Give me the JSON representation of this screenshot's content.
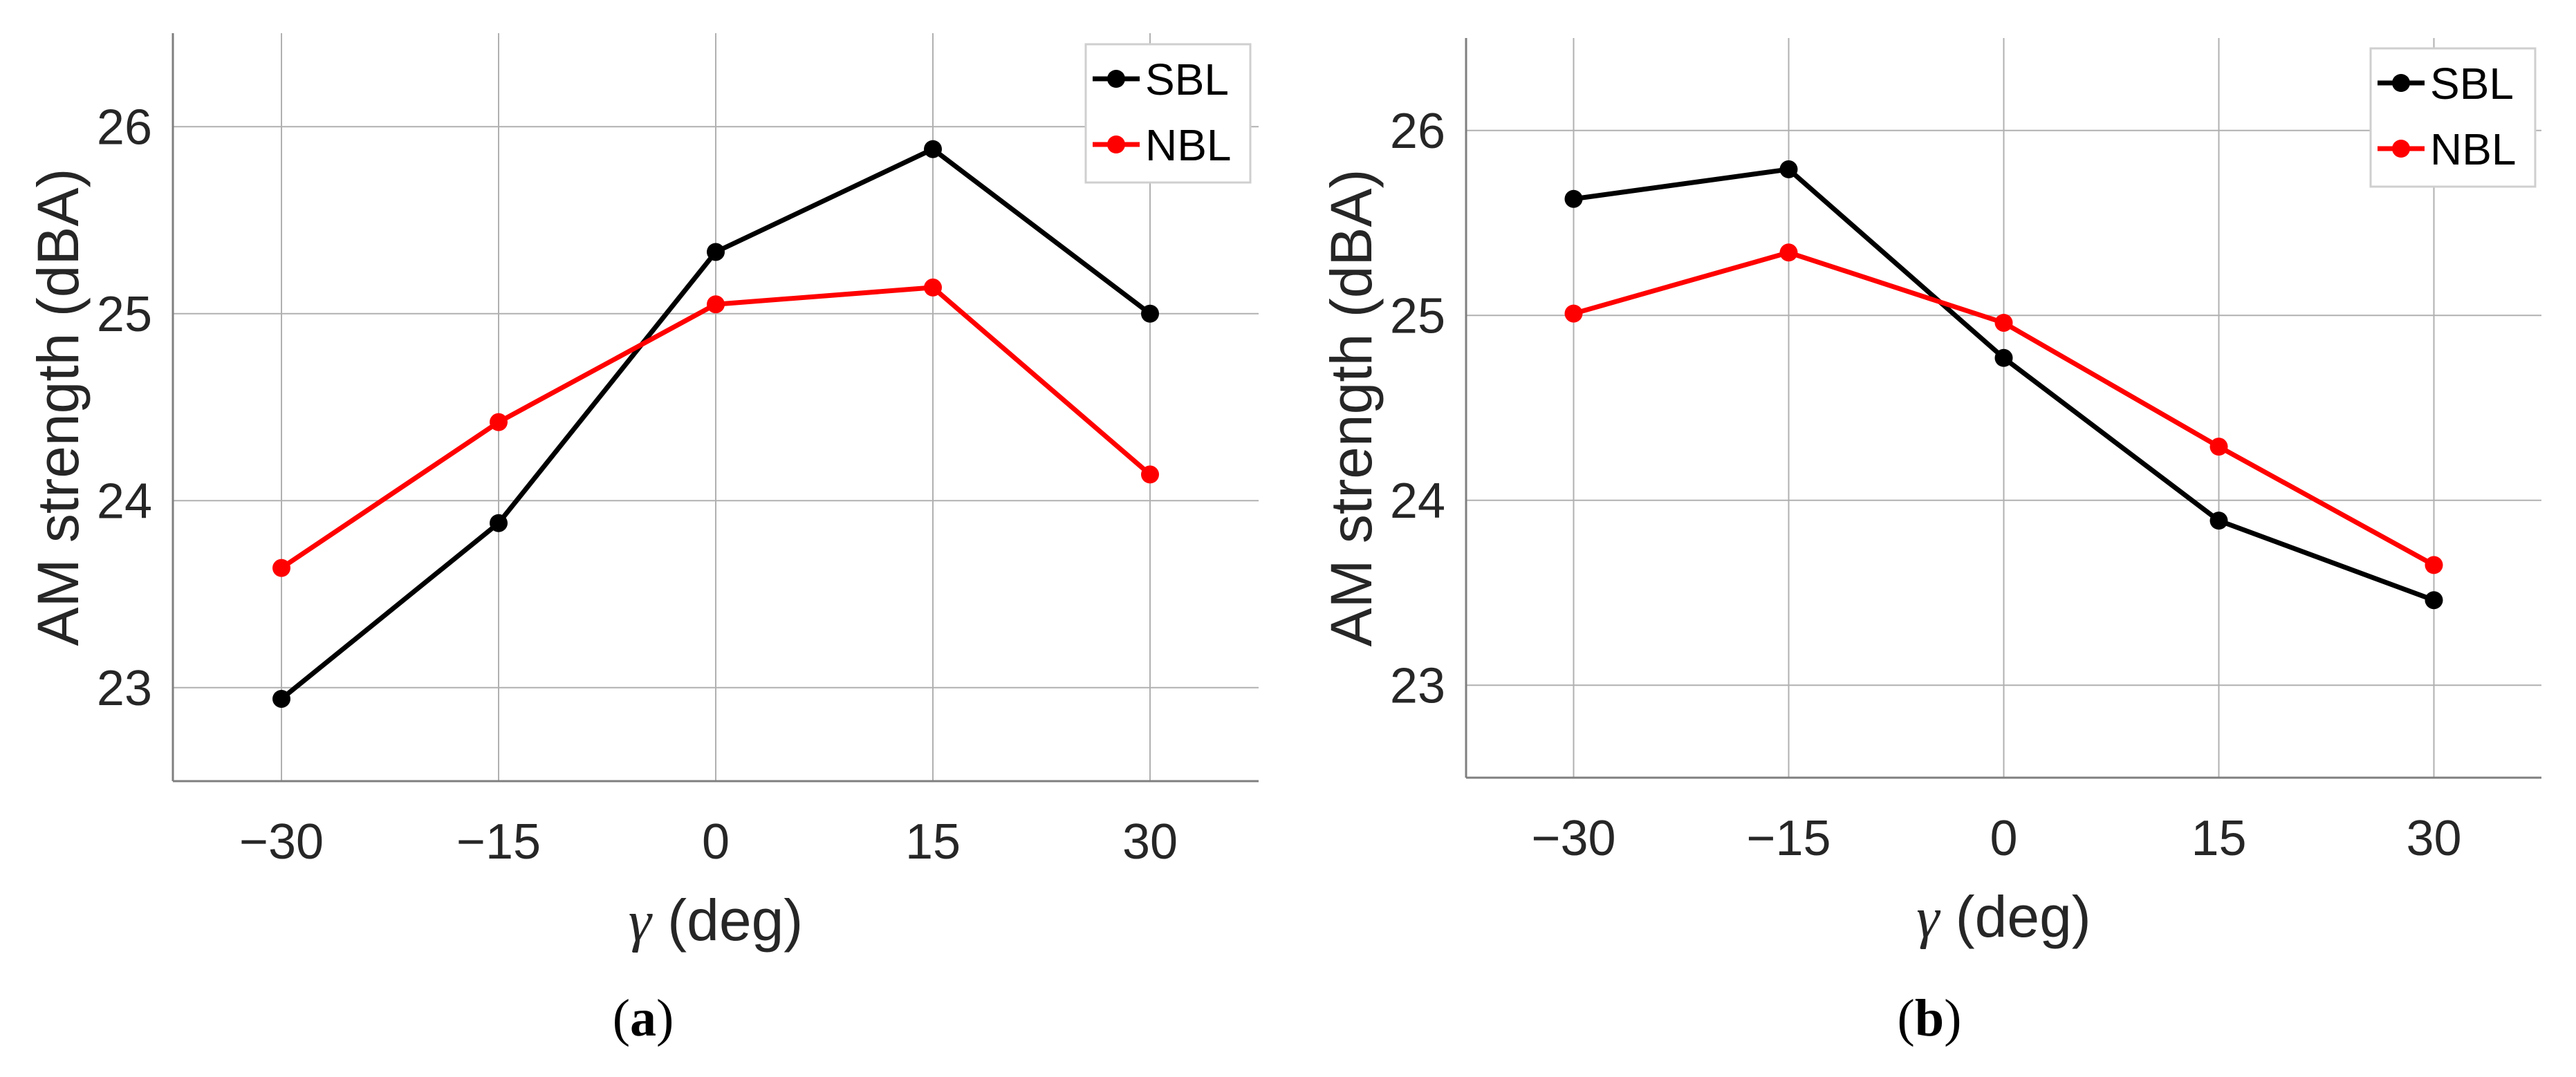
{
  "colors": {
    "SBL": "#000000",
    "NBL": "#ff0000",
    "grid": "#b0b0b0",
    "axis": "#7f7f7f"
  },
  "captions": {
    "a": "a",
    "b": "b"
  },
  "chart_data": [
    {
      "type": "line",
      "panel": "a",
      "x": [
        -30,
        -15,
        0,
        15,
        30
      ],
      "xticks": [
        "−30",
        "−15",
        "0",
        "15",
        "30"
      ],
      "yticks": [
        "23",
        "24",
        "25",
        "26"
      ],
      "xlim": [
        -37.5,
        37.5
      ],
      "ylim": [
        22.5,
        26.5
      ],
      "xlabel_symbol": "γ",
      "xlabel": " (deg)",
      "ylabel": "AM strength (dBA)",
      "legend_position": "top-right",
      "series": [
        {
          "name": "SBL",
          "values": [
            22.94,
            23.88,
            25.33,
            25.88,
            25.0
          ]
        },
        {
          "name": "NBL",
          "values": [
            23.64,
            24.42,
            25.05,
            25.14,
            24.14
          ]
        }
      ]
    },
    {
      "type": "line",
      "panel": "b",
      "x": [
        -30,
        -15,
        0,
        15,
        30
      ],
      "xticks": [
        "−30",
        "−15",
        "0",
        "15",
        "30"
      ],
      "yticks": [
        "23",
        "24",
        "25",
        "26"
      ],
      "xlim": [
        -37.5,
        37.5
      ],
      "ylim": [
        22.5,
        26.5
      ],
      "xlabel_symbol": "γ",
      "xlabel": " (deg)",
      "ylabel": "AM strength (dBA)",
      "legend_position": "top-right",
      "series": [
        {
          "name": "SBL",
          "values": [
            25.63,
            25.79,
            24.77,
            23.89,
            23.46
          ]
        },
        {
          "name": "NBL",
          "values": [
            25.01,
            25.34,
            24.96,
            24.29,
            23.65
          ]
        }
      ]
    }
  ]
}
